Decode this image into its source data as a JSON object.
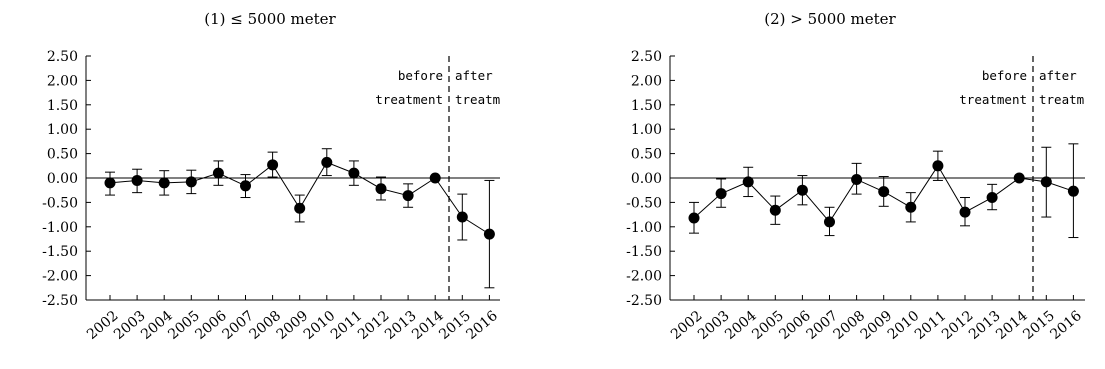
{
  "chart_data": [
    {
      "type": "line",
      "title": "(1) ≤ 5000 meter",
      "xlabel": "",
      "ylabel": "",
      "categories": [
        "2002",
        "2003",
        "2004",
        "2005",
        "2006",
        "2007",
        "2008",
        "2009",
        "2010",
        "2011",
        "2012",
        "2013",
        "2014",
        "2015",
        "2016"
      ],
      "ylim": [
        -2.5,
        2.5
      ],
      "yticks": [
        "2.50",
        "2.00",
        "1.50",
        "1.00",
        "0.50",
        "0.00",
        "-0.50",
        "-1.00",
        "-1.50",
        "-2.00",
        "-2.50"
      ],
      "series": [
        {
          "values": [
            -0.1,
            -0.05,
            -0.1,
            -0.08,
            0.1,
            -0.16,
            0.27,
            -0.62,
            0.32,
            0.1,
            -0.22,
            -0.36,
            0.0,
            -0.8,
            -1.15
          ],
          "ci_low": [
            -0.35,
            -0.3,
            -0.35,
            -0.32,
            -0.15,
            -0.4,
            0.02,
            -0.9,
            0.05,
            -0.15,
            -0.45,
            -0.6,
            0.0,
            -1.27,
            -2.25
          ],
          "ci_high": [
            0.12,
            0.18,
            0.15,
            0.16,
            0.35,
            0.07,
            0.53,
            -0.35,
            0.6,
            0.35,
            0.02,
            -0.12,
            0.0,
            -0.33,
            -0.05
          ]
        }
      ],
      "reference_line": 0,
      "treatment_line_after": "2014",
      "annotations": {
        "before_line1": "before",
        "before_line2": "treatment",
        "after_line1": "after",
        "after_line2": "treatm"
      }
    },
    {
      "type": "line",
      "title": "(2) > 5000 meter",
      "xlabel": "",
      "ylabel": "",
      "categories": [
        "2002",
        "2003",
        "2004",
        "2005",
        "2006",
        "2007",
        "2008",
        "2009",
        "2010",
        "2011",
        "2012",
        "2013",
        "2014",
        "2015",
        "2016"
      ],
      "ylim": [
        -2.5,
        2.5
      ],
      "yticks": [
        "2.50",
        "2.00",
        "1.50",
        "1.00",
        "0.50",
        "0.00",
        "-0.50",
        "-1.00",
        "-1.50",
        "-2.00",
        "-2.50"
      ],
      "series": [
        {
          "values": [
            -0.82,
            -0.32,
            -0.08,
            -0.66,
            -0.25,
            -0.9,
            -0.03,
            -0.28,
            -0.6,
            0.25,
            -0.7,
            -0.4,
            0.0,
            -0.08,
            -0.27
          ],
          "ci_low": [
            -1.13,
            -0.6,
            -0.38,
            -0.95,
            -0.55,
            -1.18,
            -0.33,
            -0.58,
            -0.9,
            -0.05,
            -0.98,
            -0.65,
            0.0,
            -0.8,
            -1.22
          ],
          "ci_high": [
            -0.5,
            -0.02,
            0.22,
            -0.37,
            0.05,
            -0.6,
            0.3,
            0.03,
            -0.3,
            0.55,
            -0.4,
            -0.13,
            0.0,
            0.63,
            0.7
          ]
        }
      ],
      "reference_line": 0,
      "treatment_line_after": "2014",
      "annotations": {
        "before_line1": "before",
        "before_line2": "treatment",
        "after_line1": "after",
        "after_line2": "treatm"
      }
    }
  ]
}
